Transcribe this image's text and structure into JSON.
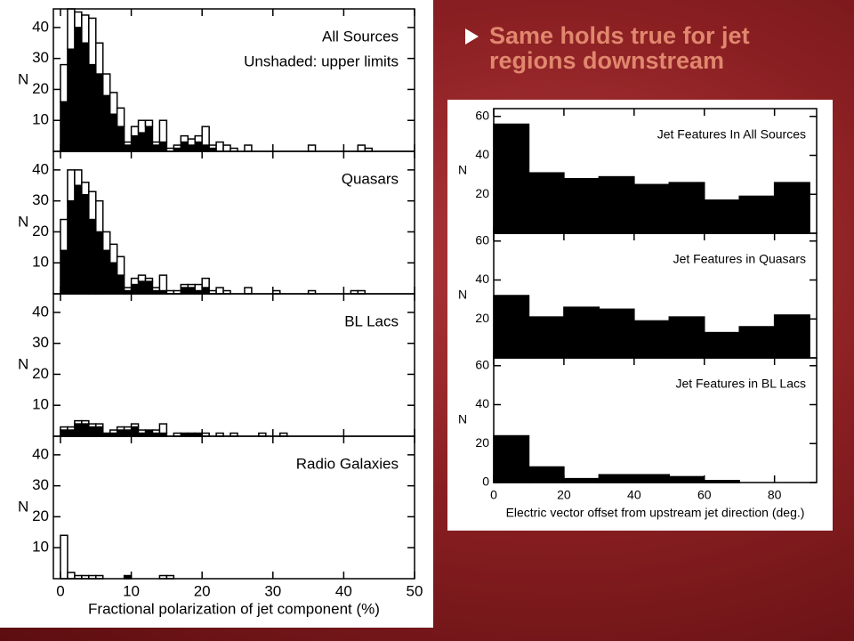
{
  "bullet": "Same holds true for jet regions downstream",
  "chart_data": [
    {
      "type": "histogram",
      "xlabel": "Fractional polarization of jet component (%)",
      "ylabel": "N",
      "xlim": [
        -1,
        50
      ],
      "xticks": [
        0,
        10,
        20,
        30,
        40,
        50
      ],
      "bins": [
        0,
        1,
        2,
        3,
        4,
        5,
        6,
        7,
        8,
        9,
        10,
        11,
        12,
        13,
        14,
        15,
        16,
        17,
        18,
        19,
        20,
        21,
        22,
        23,
        24,
        25,
        26,
        27,
        28,
        29,
        30,
        31,
        32,
        33,
        34,
        35,
        36,
        37,
        38,
        39,
        40,
        41,
        42,
        43,
        44,
        45
      ],
      "panels": [
        {
          "labels": [
            "All Sources",
            "Unshaded: upper limits"
          ],
          "ylim": [
            0,
            46
          ],
          "yticks": [
            10,
            20,
            30,
            40
          ],
          "series": [
            {
              "color": "#000000",
              "values": [
                16,
                33,
                40,
                35,
                28,
                25,
                18,
                12,
                8,
                2,
                5,
                6,
                8,
                2,
                3,
                0,
                1,
                3,
                2,
                3,
                2,
                1,
                0,
                0,
                0,
                0,
                0,
                0,
                0,
                0,
                0,
                0,
                0,
                0,
                0,
                0,
                0,
                0,
                0,
                0,
                0,
                0,
                0,
                0,
                0
              ]
            },
            {
              "color": "#ffffff",
              "values": [
                12,
                13,
                5,
                9,
                15,
                10,
                7,
                7,
                6,
                1,
                3,
                4,
                2,
                1,
                7,
                1,
                1,
                2,
                2,
                2,
                6,
                1,
                3,
                2,
                1,
                0,
                2,
                0,
                0,
                0,
                0,
                0,
                0,
                0,
                0,
                2,
                0,
                0,
                0,
                0,
                0,
                0,
                2,
                1,
                0
              ]
            }
          ]
        },
        {
          "labels": [
            "Quasars"
          ],
          "ylim": [
            0,
            46
          ],
          "yticks": [
            10,
            20,
            30,
            40
          ],
          "series": [
            {
              "color": "#000000",
              "values": [
                14,
                30,
                35,
                32,
                24,
                20,
                14,
                10,
                6,
                1,
                3,
                4,
                4,
                1,
                1,
                0,
                0,
                2,
                2,
                1,
                2,
                0,
                0,
                0,
                0,
                0,
                0,
                0,
                0,
                0,
                0,
                0,
                0,
                0,
                0,
                0,
                0,
                0,
                0,
                0,
                0,
                0,
                0,
                0,
                0
              ]
            },
            {
              "color": "#ffffff",
              "values": [
                10,
                10,
                5,
                4,
                9,
                10,
                6,
                6,
                6,
                1,
                2,
                2,
                1,
                1,
                5,
                1,
                1,
                1,
                1,
                2,
                3,
                1,
                2,
                1,
                0,
                0,
                2,
                0,
                0,
                0,
                1,
                0,
                0,
                0,
                0,
                1,
                0,
                0,
                0,
                0,
                0,
                1,
                1,
                0,
                0
              ]
            }
          ]
        },
        {
          "labels": [
            "BL Lacs"
          ],
          "ylim": [
            0,
            46
          ],
          "yticks": [
            10,
            20,
            30,
            40
          ],
          "series": [
            {
              "color": "#000000",
              "values": [
                2,
                2,
                4,
                4,
                3,
                3,
                1,
                1,
                2,
                2,
                3,
                1,
                2,
                1,
                1,
                0,
                0,
                1,
                1,
                1,
                0,
                0,
                0,
                0,
                0,
                0,
                0,
                0,
                0,
                0,
                0,
                0,
                0,
                0,
                0,
                0,
                0,
                0,
                0,
                0,
                0,
                0,
                0,
                0,
                0
              ]
            },
            {
              "color": "#ffffff",
              "values": [
                1,
                1,
                1,
                1,
                1,
                1,
                0,
                1,
                1,
                1,
                1,
                1,
                0,
                1,
                3,
                0,
                1,
                0,
                0,
                0,
                1,
                0,
                1,
                0,
                1,
                0,
                0,
                0,
                1,
                0,
                0,
                1,
                0,
                0,
                0,
                0,
                0,
                0,
                0,
                0,
                0,
                0,
                0,
                0,
                0
              ]
            }
          ]
        },
        {
          "labels": [
            "Radio Galaxies"
          ],
          "ylim": [
            0,
            46
          ],
          "yticks": [
            10,
            20,
            30,
            40
          ],
          "series": [
            {
              "color": "#000000",
              "values": [
                0,
                0,
                0,
                0,
                0,
                0,
                0,
                0,
                0,
                1,
                0,
                0,
                0,
                0,
                0,
                0,
                0,
                0,
                0,
                0,
                0,
                0,
                0,
                0,
                0,
                0,
                0,
                0,
                0,
                0,
                0,
                0,
                0,
                0,
                0,
                0,
                0,
                0,
                0,
                0,
                0,
                0,
                0,
                0,
                0
              ]
            },
            {
              "color": "#ffffff",
              "values": [
                14,
                2,
                1,
                1,
                1,
                1,
                0,
                0,
                0,
                0,
                0,
                0,
                0,
                0,
                1,
                1,
                0,
                0,
                0,
                0,
                0,
                0,
                0,
                0,
                0,
                0,
                0,
                0,
                0,
                0,
                0,
                0,
                0,
                0,
                0,
                0,
                0,
                0,
                0,
                0,
                0,
                0,
                0,
                0,
                0
              ]
            }
          ]
        }
      ]
    },
    {
      "type": "histogram",
      "xlabel": "Electric vector offset from upstream jet direction (deg.)",
      "ylabel": "N",
      "xlim": [
        0,
        92
      ],
      "xticks": [
        0,
        20,
        40,
        60,
        80
      ],
      "bins": [
        0,
        10,
        20,
        30,
        40,
        50,
        60,
        70,
        80,
        90
      ],
      "panels": [
        {
          "labels": [
            "Jet Features In All Sources"
          ],
          "ylim": [
            0,
            64
          ],
          "yticks": [
            20,
            40,
            60
          ],
          "series": [
            {
              "color": "#000000",
              "values": [
                56,
                31,
                28,
                29,
                25,
                26,
                17,
                19,
                26
              ]
            }
          ]
        },
        {
          "labels": [
            "Jet Features in Quasars"
          ],
          "ylim": [
            0,
            64
          ],
          "yticks": [
            20,
            40,
            60
          ],
          "series": [
            {
              "color": "#000000",
              "values": [
                32,
                21,
                26,
                25,
                19,
                21,
                13,
                16,
                22
              ]
            }
          ]
        },
        {
          "labels": [
            "Jet Features in BL Lacs"
          ],
          "ylim": [
            0,
            64
          ],
          "yticks": [
            0,
            20,
            40,
            60
          ],
          "series": [
            {
              "color": "#000000",
              "values": [
                24,
                8,
                2,
                4,
                4,
                3,
                1,
                0,
                0
              ]
            }
          ]
        }
      ]
    }
  ]
}
